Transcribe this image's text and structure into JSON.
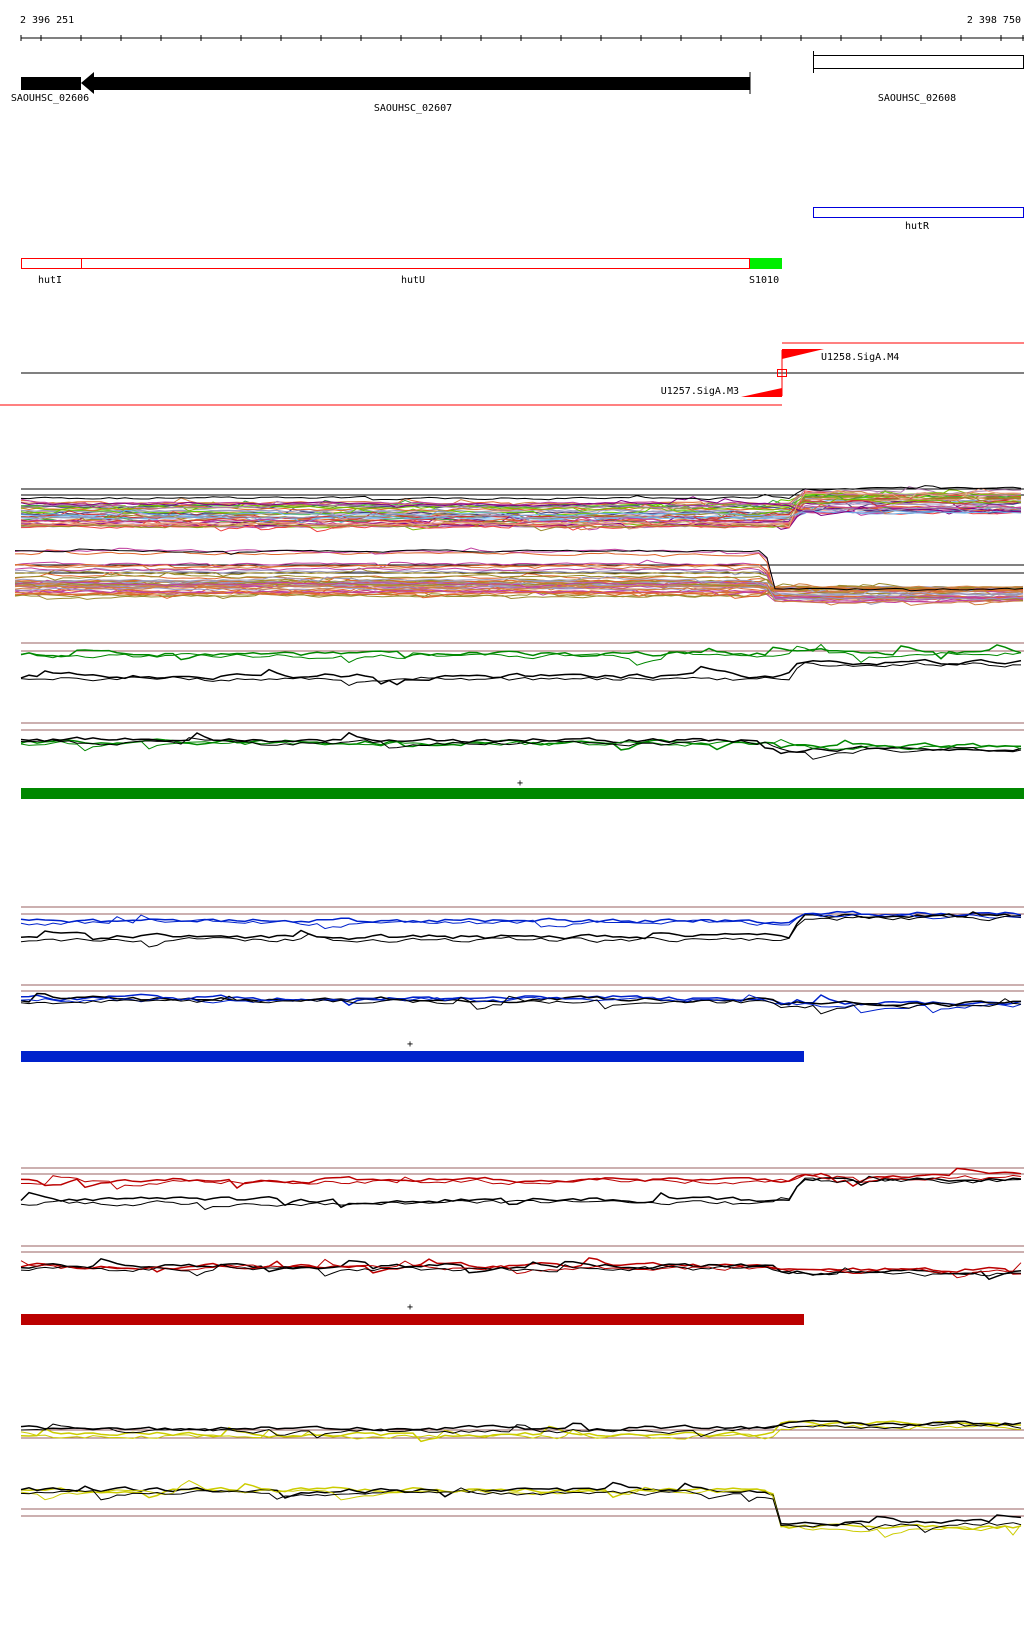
{
  "ruler": {
    "start_label": "2 396 251",
    "end_label": "2 398 750"
  },
  "genes": [
    {
      "label": "SAOUHSC_02606",
      "strand": "-",
      "style": "filled"
    },
    {
      "label": "SAOUHSC_02607",
      "strand": "-",
      "style": "arrow"
    },
    {
      "label": "SAOUHSC_02608",
      "strand": "+",
      "style": "open"
    }
  ],
  "annotations": {
    "hutR": "hutR",
    "hutI": "hutI",
    "hutU": "hutU",
    "s1010": "S1010"
  },
  "promoters": {
    "forward": "U1258.SigA.M4",
    "reverse": "U1257.SigA.M3"
  },
  "strand_markers": {
    "green": "+",
    "blue": "+",
    "red": "+"
  },
  "colors": {
    "gene": "#000000",
    "operon": "#ff0000",
    "hutR_box": "#0000dd",
    "s1010": "#00ee00",
    "promoter": "#ff0000",
    "track_baseline": "#9a6060",
    "green_track": "#008800",
    "blue_track": "#0022cc",
    "red_track": "#bb0000",
    "yellow_track": "#cccc00",
    "bundle": [
      "#e0662a",
      "#cc3333",
      "#7ab800",
      "#9a8a2a",
      "#6ab0e8",
      "#b07ab0",
      "#c040a0",
      "#800080",
      "#e8a080",
      "#9a9ac0",
      "#404080",
      "#40a040",
      "#d08040",
      "#f04040",
      "#66cc00"
    ]
  }
}
